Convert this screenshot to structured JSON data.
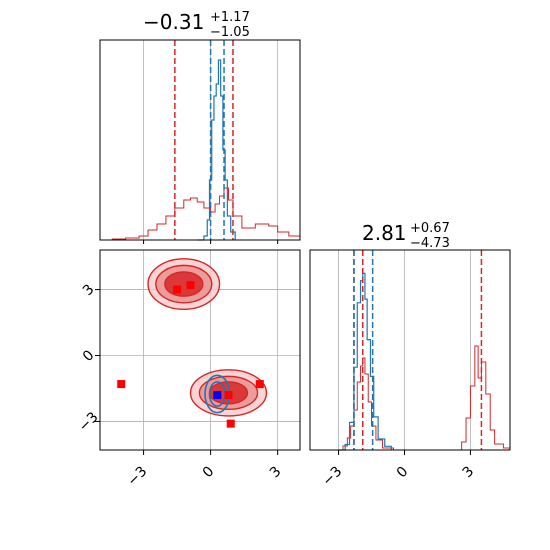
{
  "chart_data": {
    "type": "corner",
    "colors": {
      "blue": "#1f77b4",
      "red": "#d62728",
      "marker_red": "#ff0000",
      "marker_blue": "#0000ff",
      "grid": "#b0b0b0"
    },
    "titles": [
      {
        "main": "−0.31",
        "sup": "+1.17",
        "sub": "−1.05"
      },
      {
        "main": "2.81",
        "sup": "+0.67",
        "sub": "−4.73"
      }
    ],
    "x_ticks": [
      {
        "value": -3,
        "label": "−3"
      },
      {
        "value": 0,
        "label": "0"
      },
      {
        "value": 3,
        "label": "3"
      }
    ],
    "x2_ticks": [
      {
        "value": -3,
        "label": "−3"
      },
      {
        "value": 0,
        "label": "0"
      },
      {
        "value": 3,
        "label": "3"
      }
    ],
    "y_ticks": [
      {
        "value": 3,
        "label": "3"
      },
      {
        "value": 0,
        "label": "0"
      },
      {
        "value": -3,
        "label": "−3"
      }
    ],
    "xlim_param1": [
      -4.95,
      4.0
    ],
    "xlim_param2": [
      -4.3,
      4.8
    ],
    "ylim_param2": [
      -4.3,
      4.8
    ],
    "hist1": {
      "red_lines": [
        -1.6,
        1.0
      ],
      "blue_lines": [
        0.0,
        0.6
      ],
      "red_curve": [
        [
          -4.95,
          0
        ],
        [
          -4.4,
          0.005
        ],
        [
          -3.8,
          0.01
        ],
        [
          -3.2,
          0.02
        ],
        [
          -2.8,
          0.05
        ],
        [
          -2.4,
          0.08
        ],
        [
          -2.0,
          0.12
        ],
        [
          -1.6,
          0.16
        ],
        [
          -1.2,
          0.2
        ],
        [
          -0.9,
          0.21
        ],
        [
          -0.6,
          0.19
        ],
        [
          -0.3,
          0.16
        ],
        [
          0.0,
          0.14
        ],
        [
          0.2,
          0.18
        ],
        [
          0.4,
          0.22
        ],
        [
          0.6,
          0.26
        ],
        [
          0.8,
          0.2
        ],
        [
          1.0,
          0.12
        ],
        [
          1.4,
          0.06
        ],
        [
          2.0,
          0.08
        ],
        [
          2.6,
          0.07
        ],
        [
          3.0,
          0.04
        ],
        [
          3.5,
          0.02
        ],
        [
          4.0,
          0
        ]
      ],
      "blue_curve": [
        [
          -0.6,
          0
        ],
        [
          -0.3,
          0.02
        ],
        [
          -0.15,
          0.1
        ],
        [
          -0.05,
          0.3
        ],
        [
          0.05,
          0.6
        ],
        [
          0.15,
          0.72
        ],
        [
          0.25,
          0.78
        ],
        [
          0.35,
          0.9
        ],
        [
          0.45,
          0.72
        ],
        [
          0.55,
          0.45
        ],
        [
          0.65,
          0.3
        ],
        [
          0.75,
          0.12
        ],
        [
          0.9,
          0.04
        ],
        [
          1.1,
          0
        ]
      ]
    },
    "hist2": {
      "red_lines": [
        -2.3,
        -1.9,
        3.5
      ],
      "blue_lines": [
        -2.3,
        -1.45
      ],
      "red_curve": [
        [
          -4.3,
          0
        ],
        [
          -3.2,
          0
        ],
        [
          -2.8,
          0.02
        ],
        [
          -2.6,
          0.06
        ],
        [
          -2.45,
          0.12
        ],
        [
          -2.3,
          0.2
        ],
        [
          -2.15,
          0.34
        ],
        [
          -2.0,
          0.42
        ],
        [
          -1.9,
          0.46
        ],
        [
          -1.8,
          0.38
        ],
        [
          -1.65,
          0.24
        ],
        [
          -1.5,
          0.12
        ],
        [
          -1.3,
          0.05
        ],
        [
          -1.0,
          0.01
        ],
        [
          -0.5,
          0
        ],
        [
          2.4,
          0
        ],
        [
          2.6,
          0.04
        ],
        [
          2.8,
          0.16
        ],
        [
          3.0,
          0.32
        ],
        [
          3.2,
          0.52
        ],
        [
          3.35,
          0.36
        ],
        [
          3.5,
          0.44
        ],
        [
          3.7,
          0.28
        ],
        [
          3.9,
          0.1
        ],
        [
          4.1,
          0.03
        ],
        [
          4.5,
          0.01
        ],
        [
          4.8,
          0
        ]
      ],
      "blue_curve": [
        [
          -3.0,
          0
        ],
        [
          -2.7,
          0.03
        ],
        [
          -2.5,
          0.15
        ],
        [
          -2.3,
          0.45
        ],
        [
          -2.15,
          0.8
        ],
        [
          -2.0,
          0.92
        ],
        [
          -1.9,
          0.96
        ],
        [
          -1.8,
          0.82
        ],
        [
          -1.7,
          0.6
        ],
        [
          -1.55,
          0.4
        ],
        [
          -1.4,
          0.18
        ],
        [
          -1.2,
          0.06
        ],
        [
          -0.9,
          0.02
        ],
        [
          -0.6,
          0
        ]
      ]
    },
    "scatter_red": [
      [
        -4.0,
        -1.3
      ],
      [
        -1.5,
        3.0
      ],
      [
        -0.9,
        3.2
      ],
      [
        0.8,
        -1.8
      ],
      [
        0.9,
        -3.1
      ],
      [
        2.2,
        -1.3
      ]
    ],
    "scatter_blue": [
      [
        0.3,
        -1.8
      ]
    ],
    "red_contours": [
      {
        "cx": -1.2,
        "cy": 3.25,
        "rx": [
          1.6,
          1.25,
          0.85
        ],
        "ry": [
          1.15,
          0.85,
          0.55
        ]
      },
      {
        "cx": 0.8,
        "cy": -1.7,
        "rx": [
          1.7,
          1.3,
          0.85
        ],
        "ry": [
          1.05,
          0.75,
          0.5
        ]
      }
    ],
    "blue_contours": {
      "cx": 0.3,
      "cy": -1.75,
      "rx": [
        0.55,
        0.35
      ],
      "ry": [
        0.85,
        0.55
      ]
    }
  }
}
